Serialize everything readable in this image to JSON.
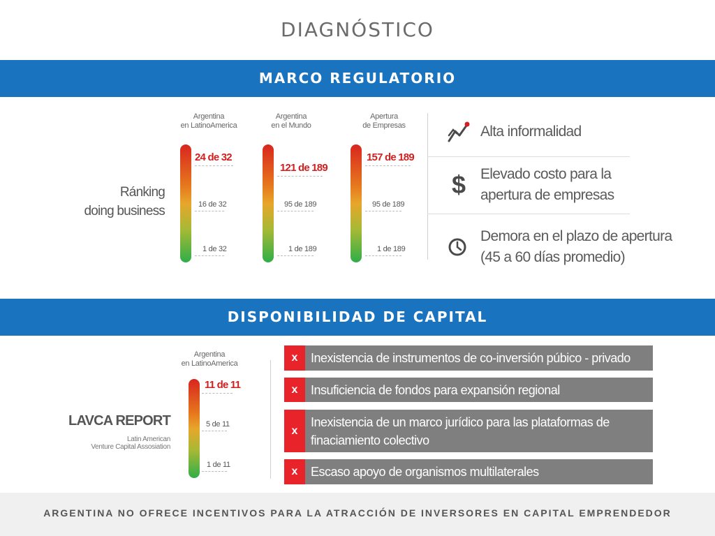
{
  "title": "DIAGNÓSTICO",
  "section1": {
    "band": "MARCO REGULATORIO",
    "ranking_label_line1": "Ránking",
    "ranking_label_line2": "doing business",
    "columns": [
      {
        "header_line1": "Argentina",
        "header_line2": "en LatinoAmerica",
        "top": "24 de 32",
        "mid": "16 de 32",
        "bottom": "1 de 32"
      },
      {
        "header_line1": "Argentina",
        "header_line2": "en el Mundo",
        "top": "121 de 189",
        "mid": "95 de 189",
        "bottom": "1 de 189"
      },
      {
        "header_line1": "Apertura",
        "header_line2": "de Empresas",
        "top": "157 de 189",
        "mid": "95 de 189",
        "bottom": "1 de 189"
      }
    ],
    "features": [
      {
        "icon": "trend-chart-icon",
        "line1": "Alta informalidad",
        "line2": ""
      },
      {
        "icon": "dollar-icon",
        "line1": "Elevado costo para la",
        "line2": "apertura de empresas"
      },
      {
        "icon": "clock-icon",
        "line1": "Demora en el plazo de apertura",
        "line2": "(45 a 60 días promedio)"
      }
    ]
  },
  "section2": {
    "band": "DISPONIBILIDAD DE CAPITAL",
    "column": {
      "header_line1": "Argentina",
      "header_line2": "en LatinoAmerica",
      "top": "11 de 11",
      "mid": "5 de 11",
      "bottom": "1 de 11"
    },
    "lavca_title": "LAVCA REPORT",
    "lavca_sub_line1": "Latin American",
    "lavca_sub_line2": "Venture Capital Assosiation",
    "items": [
      {
        "mark": "x",
        "line1": "Inexistencia de instrumentos de co-inversión púbico - privado",
        "line2": ""
      },
      {
        "mark": "x",
        "line1": "Insuficiencia de fondos para expansión regional",
        "line2": ""
      },
      {
        "mark": "x",
        "line1": "Inexistencia de un marco jurídico para las plataformas de",
        "line2": "finaciamiento colectivo"
      },
      {
        "mark": "x",
        "line1": "Escaso apoyo de organismos multilaterales",
        "line2": ""
      }
    ]
  },
  "footer": "ARGENTINA NO OFRECE INCENTIVOS PARA LA ATRACCIÓN DE INVERSORES EN CAPITAL EMPRENDEDOR",
  "colors": {
    "band": "#1a73bf",
    "highlight": "#d21f1f",
    "item_bg": "#7f7f7f",
    "x_bg": "#e8242a"
  }
}
